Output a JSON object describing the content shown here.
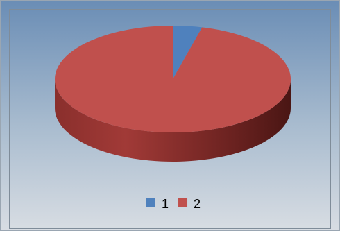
{
  "chart_data": {
    "type": "pie",
    "categories": [
      "1",
      "2"
    ],
    "values": [
      4,
      96
    ],
    "colors": [
      "#4f81bd",
      "#c0504d"
    ],
    "legend": "bottom"
  }
}
